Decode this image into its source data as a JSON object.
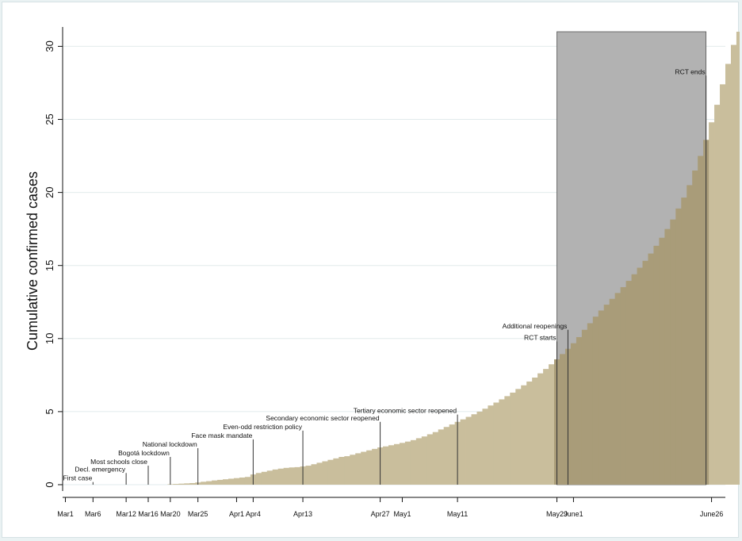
{
  "chart_data": {
    "type": "bar",
    "title": "",
    "xlabel": "",
    "ylabel": "Cumulative confirmed cases",
    "ylim": [
      0,
      31
    ],
    "xlim_day": [
      -0.5,
      119.5
    ],
    "y_ticks": [
      0,
      5,
      10,
      15,
      20,
      25,
      30
    ],
    "grid": true,
    "x_ticks": [
      {
        "label": "Mar1",
        "day": 0
      },
      {
        "label": "Mar6",
        "day": 5
      },
      {
        "label": "Mar12",
        "day": 11
      },
      {
        "label": "Mar16",
        "day": 15
      },
      {
        "label": "Mar20",
        "day": 19
      },
      {
        "label": "Mar25",
        "day": 24
      },
      {
        "label": "Apr1",
        "day": 31
      },
      {
        "label": "Apr4",
        "day": 34
      },
      {
        "label": "Apr13",
        "day": 43
      },
      {
        "label": "Apr27",
        "day": 57
      },
      {
        "label": "May1",
        "day": 61
      },
      {
        "label": "May11",
        "day": 71
      },
      {
        "label": "May29",
        "day": 89
      },
      {
        "label": "June1",
        "day": 92
      },
      {
        "label": "June26",
        "day": 117
      }
    ],
    "shaded_period": {
      "start_day": 89,
      "end_day": 116,
      "color": "#b2b2b2"
    },
    "bar_color": "#c9be9c",
    "overlap_color": "#a99c79",
    "events": [
      {
        "label": "First case",
        "day": 5,
        "y_top": 0.18
      },
      {
        "label": "Decl. emergency",
        "day": 11,
        "y_top": 0.8
      },
      {
        "label": "Most schools close",
        "day": 15,
        "y_top": 1.3
      },
      {
        "label": "Bogotá lockdown",
        "day": 19,
        "y_top": 1.9
      },
      {
        "label": "National lockdown",
        "day": 24,
        "y_top": 2.5
      },
      {
        "label": "Face mask mandate",
        "day": 34,
        "y_top": 3.1
      },
      {
        "label": "Even-odd restriction policy",
        "day": 43,
        "y_top": 3.7
      },
      {
        "label": "Secondary economic sector reopened",
        "day": 57,
        "y_top": 4.3
      },
      {
        "label": "Tertiary economic sector reopened",
        "day": 71,
        "y_top": 4.8
      },
      {
        "label": "RCT starts",
        "day": 89,
        "y_top": 9.8
      },
      {
        "label": "Additional reopenings",
        "day": 91,
        "y_top": 10.6
      },
      {
        "label": "RCT ends",
        "day": 116,
        "y_top": 28.0
      }
    ],
    "start_date": "Mar1",
    "values": [
      0,
      0,
      0,
      0,
      0,
      0,
      0,
      0,
      0,
      0,
      0,
      0,
      0,
      0,
      0,
      0,
      0,
      0,
      0,
      0.03,
      0.05,
      0.07,
      0.09,
      0.11,
      0.15,
      0.2,
      0.24,
      0.29,
      0.33,
      0.37,
      0.41,
      0.45,
      0.49,
      0.53,
      0.7,
      0.8,
      0.88,
      0.96,
      1.04,
      1.1,
      1.15,
      1.18,
      1.2,
      1.25,
      1.3,
      1.4,
      1.5,
      1.6,
      1.7,
      1.8,
      1.9,
      1.95,
      2.05,
      2.15,
      2.25,
      2.35,
      2.45,
      2.55,
      2.62,
      2.7,
      2.78,
      2.86,
      2.95,
      3.05,
      3.18,
      3.3,
      3.45,
      3.6,
      3.78,
      3.95,
      4.12,
      4.3,
      4.47,
      4.64,
      4.82,
      5.0,
      5.2,
      5.42,
      5.62,
      5.84,
      6.06,
      6.3,
      6.55,
      6.8,
      7.06,
      7.33,
      7.62,
      7.92,
      8.24,
      8.58,
      8.94,
      9.3,
      9.68,
      10.1,
      10.6,
      11.05,
      11.5,
      11.92,
      12.32,
      12.72,
      13.12,
      13.52,
      13.95,
      14.4,
      14.85,
      15.32,
      15.82,
      16.35,
      16.9,
      17.5,
      18.15,
      18.9,
      19.65,
      20.5,
      21.5,
      22.5,
      23.6,
      24.8,
      26.0,
      27.4,
      28.8,
      30.1,
      31.0
    ]
  }
}
